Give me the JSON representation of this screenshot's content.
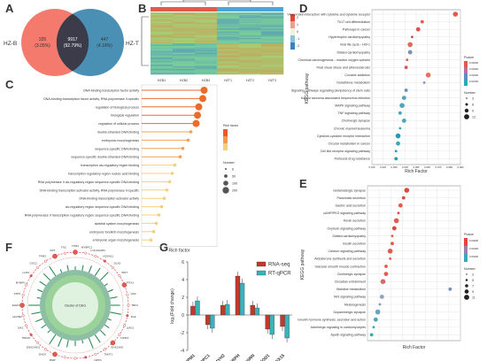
{
  "panels": {
    "A": "A",
    "B": "B",
    "C": "C",
    "D": "D",
    "E": "E",
    "F": "F",
    "G": "G"
  },
  "venn": {
    "left_name": "HZ-B",
    "right_name": "HZ-T",
    "left_count": "325",
    "left_pct": "(3.05%)",
    "overlap_count": "9917",
    "overlap_pct": "(92.79%)",
    "right_count": "447",
    "right_pct": "(4.18%)",
    "left_color": "#f47a6e",
    "right_color": "#4a90b5",
    "overlap_color": "#3b3b4a"
  },
  "heatmap": {
    "samples": [
      "HZB1",
      "HZB2",
      "HZB3",
      "HZT1",
      "HZT2",
      "HZT3"
    ],
    "legend": [
      "2",
      "1",
      "0",
      "-1",
      "-2"
    ]
  },
  "panel_c": {
    "terms": [
      "DNA-binding transcription factor activity",
      "DNA-binding transcription factor activity, RNA polymerase II-specific",
      "regulation of biological process",
      "biological regulation",
      "regulation of cellular process",
      "double-stranded DNA binding",
      "embryonic morphogenesis",
      "sequence-specific DNA binding",
      "sequence-specific double-stranded DNA binding",
      "transcription cis-regulatory region binding",
      "transcription regulatory region nucleic acid binding",
      "RNA polymerase II cis-regulatory region sequence-specific DNA binding",
      "DNA-binding transcription activator activity, RNA polymerase II-specific",
      "DNA-binding transcription activator activity",
      "cis-regulatory region sequence-specific DNA binding",
      "RNA polymerase II transcription regulatory region sequence-specific DNA binding",
      "skeletal system morphogenesis",
      "embryonic forelimb morphogenesis",
      "embryonic organ morphogenesis"
    ],
    "rich_factor": [
      0.92,
      0.91,
      0.88,
      0.87,
      0.86,
      0.82,
      0.8,
      0.76,
      0.74,
      0.7,
      0.68,
      0.66,
      0.64,
      0.62,
      0.6,
      0.58,
      0.56,
      0.54,
      0.52
    ],
    "xlabel": "Rich factor",
    "legend_title_color": "Rich factor",
    "legend_title_size": "Number",
    "size_legend": [
      "6",
      "50",
      "100",
      "200"
    ]
  },
  "panel_d": {
    "ylabel": "KEGG pathway",
    "xlabel": "Rich Factor",
    "terms": [
      "Viral protein interaction with cytokine and cytokine receptor",
      "Th17 cell differentiation",
      "Pathways in cancer",
      "Hypertrophic cardiomyopathy",
      "Viral life cycle - HIV-1",
      "Dilated cardiomyopathy",
      "Chemical carcinogenesis - reactive oxygen species",
      "Fluid shear stress and atherosclerosis",
      "Cocaine addiction",
      "Glutathione metabolism",
      "Signaling pathways regulating pluripotency of stem cells",
      "Kaposi sarcoma-associated herpesvirus infection",
      "MAPK signaling pathway",
      "TNF signaling pathway",
      "Cholinergic synapse",
      "Chronic myeloid leukemia",
      "Cytokine-cytokine receptor interaction",
      "Circular metabolism in cancer",
      "Cell like receptor signaling pathway",
      "Pertussis drug resistance"
    ],
    "rich_factor": [
      0.095,
      0.062,
      0.058,
      0.052,
      0.05,
      0.05,
      0.047,
      0.046,
      0.068,
      0.064,
      0.046,
      0.044,
      0.042,
      0.04,
      0.044,
      0.04,
      0.038,
      0.038,
      0.036,
      0.036
    ],
    "ticks": [
      "0.015",
      "0.025",
      "0.035",
      "0.045",
      "0.055",
      "0.065",
      "0.075",
      "0.085",
      "0.095"
    ],
    "legend_title": "Pvalue",
    "size_title": "Number",
    "color_ticks": [
      "0.04000",
      "0.03000",
      "0.02000",
      "0.01000"
    ],
    "size_ticks": [
      "3",
      "6",
      "9",
      "12"
    ]
  },
  "panel_e": {
    "ylabel": "KEGG pathway",
    "xlabel": "Rich Factor",
    "terms": [
      "Glutamatergic synapse",
      "Pancreatic secretion",
      "Gastric acid secretion",
      "cAMP/PKG signaling pathway",
      "Renin secretion",
      "Oxytocin signaling pathway",
      "Dilated cardiomyopathy",
      "Insulin secretion",
      "Calcium signaling pathway",
      "Aldosterone synthesis and secretion",
      "Vascular smooth muscle contraction",
      "Cholinergic synapse",
      "Circadian entrainment",
      "Histidine metabolism",
      "Wnt signaling pathway",
      "Melanogenesis",
      "Dopaminergic synapse",
      "Growth hormone synthesis, secretion and action",
      "Adrenergic signaling in cardiomyocytes",
      "Apelin signaling pathway"
    ],
    "rich_factor": [
      0.078,
      0.075,
      0.072,
      0.07,
      0.068,
      0.066,
      0.064,
      0.064,
      0.062,
      0.062,
      0.058,
      0.058,
      0.055,
      0.12,
      0.054,
      0.052,
      0.05,
      0.048,
      0.046,
      0.044
    ],
    "legend_title": "Pvalue",
    "size_title": "Number",
    "color_ticks": [
      "0.00600",
      "0.00400",
      "0.00200"
    ],
    "size_ticks": [
      "3",
      "5",
      "7",
      "9",
      "11"
    ]
  },
  "panel_f": {
    "genes": [
      "TPM1",
      "MYBPC1",
      "LOC102184",
      "HOXA11",
      "DLX5",
      "WNT",
      "PITX1",
      "GSC",
      "TBX4",
      "FGF",
      "LMO1",
      "TWIST",
      "ENSCHIG",
      "TNNT1",
      "NPPC",
      "MYH2",
      "MYH7",
      "NKX2",
      "BMP",
      "SHOX",
      "ENSCHIG2",
      "TBX15",
      "SIX1",
      "HOXB2",
      "EGR1",
      "ATP5",
      "MYBPH",
      "LHX2",
      "GSC2",
      "TPM3",
      "KRT",
      "TNC"
    ],
    "center_text": "Cluster of DEG"
  },
  "chart_data": {
    "type": "bar",
    "categories": [
      "TPM1",
      "MYBPC1",
      "MYH2",
      "MYBPH",
      "CSRN",
      "LMOD1",
      "TBX15"
    ],
    "series": [
      {
        "name": "RNA-seq",
        "values": [
          1.0,
          -1.1,
          1.1,
          4.4,
          1.1,
          -1.6,
          -1.3
        ]
      },
      {
        "name": "RT-qPCR",
        "values": [
          1.6,
          -1.5,
          1.2,
          3.6,
          0.8,
          -2.2,
          -2.6
        ]
      }
    ],
    "ylabel": "log₂(Fold change)",
    "ylim": [
      -4,
      6
    ],
    "yticks": [
      "6",
      "4",
      "2",
      "0",
      "-2",
      "-4"
    ],
    "colors": {
      "RNA-seq": "#c0392b",
      "RT-qPCR": "#3bb1b8"
    }
  }
}
